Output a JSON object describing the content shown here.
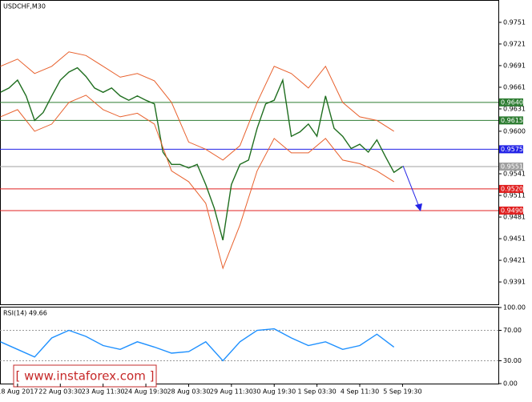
{
  "chart_data": [
    {
      "type": "line",
      "title": "USDCHF,M30",
      "ylim": [
        0.936,
        0.9782
      ],
      "xlim": [
        -0.41,
        11.24
      ],
      "yticks": [
        0.9751,
        0.9721,
        0.9691,
        0.9661,
        0.9631,
        {
          "value": 0.96,
          "label": "0.9600"
        },
        0.9541,
        0.9511,
        0.9481,
        0.9451,
        0.9421,
        0.9391
      ],
      "xticks": [
        {
          "value": 0,
          "label": "18 Aug 2017"
        },
        {
          "value": 1,
          "label": "22 Aug 03:30"
        },
        {
          "value": 2,
          "label": "23 Aug 11:30"
        },
        {
          "value": 3,
          "label": "24 Aug 19:30"
        },
        {
          "value": 4,
          "label": "28 Aug 03:30"
        },
        {
          "value": 5,
          "label": "29 Aug 11:30"
        },
        {
          "value": 6,
          "label": "30 Aug 19:30"
        },
        {
          "value": 7,
          "label": "1 Sep 03:30"
        },
        {
          "value": 8,
          "label": "4 Sep 11:30"
        },
        {
          "value": 9,
          "label": "5 Sep 19:30"
        }
      ],
      "levels": [
        {
          "value": 0.964,
          "label": "0.9640",
          "color": "#2e7d32"
        },
        {
          "value": 0.9615,
          "label": "0.9615",
          "color": "#2e7d32"
        },
        {
          "value": 0.9575,
          "label": "0.9575",
          "color": "#2323e6"
        },
        {
          "value": 0.9551,
          "label": "0.9551",
          "color": "#a0a0a0"
        },
        {
          "value": 0.952,
          "label": "0.9520",
          "color": "#e02020"
        },
        {
          "value": 0.949,
          "label": "0.9490",
          "color": "#e02020"
        }
      ],
      "series": [
        {
          "color": "#1f6e1f",
          "x": [
            -0.4,
            -0.2,
            0,
            0.2,
            0.4,
            0.6,
            0.8,
            1,
            1.2,
            1.4,
            1.6,
            1.8,
            2,
            2.2,
            2.4,
            2.6,
            2.8,
            3,
            3.2,
            3.4,
            3.6,
            3.8,
            4,
            4.2,
            4.4,
            4.6,
            4.8,
            5,
            5.2,
            5.4,
            5.6,
            5.8,
            6,
            6.2,
            6.4,
            6.6,
            6.8,
            7,
            7.2,
            7.4,
            7.6,
            7.8,
            8,
            8.2,
            8.4,
            8.6,
            8.8,
            9
          ],
          "values": [
            0.9654,
            0.966,
            0.9671,
            0.9649,
            0.9615,
            0.9626,
            0.9649,
            0.9671,
            0.9682,
            0.9688,
            0.9676,
            0.966,
            0.9654,
            0.966,
            0.9649,
            0.9643,
            0.9649,
            0.9643,
            0.9638,
            0.9571,
            0.9554,
            0.9554,
            0.9549,
            0.9554,
            0.9526,
            0.9493,
            0.9449,
            0.9526,
            0.9554,
            0.956,
            0.9604,
            0.9638,
            0.9643,
            0.9671,
            0.9593,
            0.9599,
            0.961,
            0.9593,
            0.9649,
            0.9604,
            0.9593,
            0.9576,
            0.9582,
            0.9571,
            0.9588,
            0.9565,
            0.9543,
            0.9551
          ]
        },
        {
          "color": "#e8602c",
          "x": [
            -0.4,
            0,
            0.4,
            0.8,
            1.2,
            1.6,
            2,
            2.4,
            2.8,
            3.2,
            3.6,
            4,
            4.4,
            4.8,
            5.2,
            5.6,
            6,
            6.4,
            6.8,
            7.2,
            7.6,
            8,
            8.4,
            8.8
          ],
          "values": [
            0.969,
            0.97,
            0.968,
            0.969,
            0.971,
            0.9705,
            0.969,
            0.9675,
            0.968,
            0.967,
            0.964,
            0.9585,
            0.9575,
            0.956,
            0.958,
            0.964,
            0.969,
            0.968,
            0.966,
            0.969,
            0.964,
            0.962,
            0.9615,
            0.96
          ]
        },
        {
          "color": "#e8602c",
          "x": [
            -0.4,
            0,
            0.4,
            0.8,
            1.2,
            1.6,
            2,
            2.4,
            2.8,
            3.2,
            3.6,
            4,
            4.4,
            4.8,
            5.2,
            5.6,
            6,
            6.4,
            6.8,
            7.2,
            7.6,
            8,
            8.4,
            8.8
          ],
          "values": [
            0.962,
            0.963,
            0.96,
            0.961,
            0.964,
            0.965,
            0.963,
            0.962,
            0.9625,
            0.961,
            0.9545,
            0.953,
            0.95,
            0.941,
            0.947,
            0.9545,
            0.959,
            0.957,
            0.957,
            0.959,
            0.956,
            0.9555,
            0.9545,
            0.953
          ]
        }
      ]
    },
    {
      "type": "line",
      "title": "RSI(14) 49.66",
      "ylim": [
        0,
        100
      ],
      "xlim": [
        -0.41,
        11.24
      ],
      "yticks": [
        {
          "value": 100,
          "label": "100.00"
        },
        {
          "value": 70,
          "label": "70.00"
        },
        {
          "value": 30,
          "label": "30.00"
        },
        {
          "value": 0,
          "label": "0.00"
        }
      ],
      "series": [
        {
          "color": "#1e90ff",
          "x": [
            -0.4,
            0,
            0.4,
            0.8,
            1.2,
            1.6,
            2,
            2.4,
            2.8,
            3.2,
            3.6,
            4,
            4.4,
            4.8,
            5.2,
            5.6,
            6,
            6.4,
            6.8,
            7.2,
            7.6,
            8,
            8.4,
            8.8
          ],
          "values": [
            55,
            45,
            35,
            60,
            70,
            62,
            50,
            45,
            55,
            48,
            40,
            42,
            55,
            30,
            55,
            70,
            72,
            60,
            50,
            55,
            45,
            50,
            65,
            48
          ]
        }
      ]
    }
  ],
  "watermark": "[  www.instaforex.com  ]"
}
